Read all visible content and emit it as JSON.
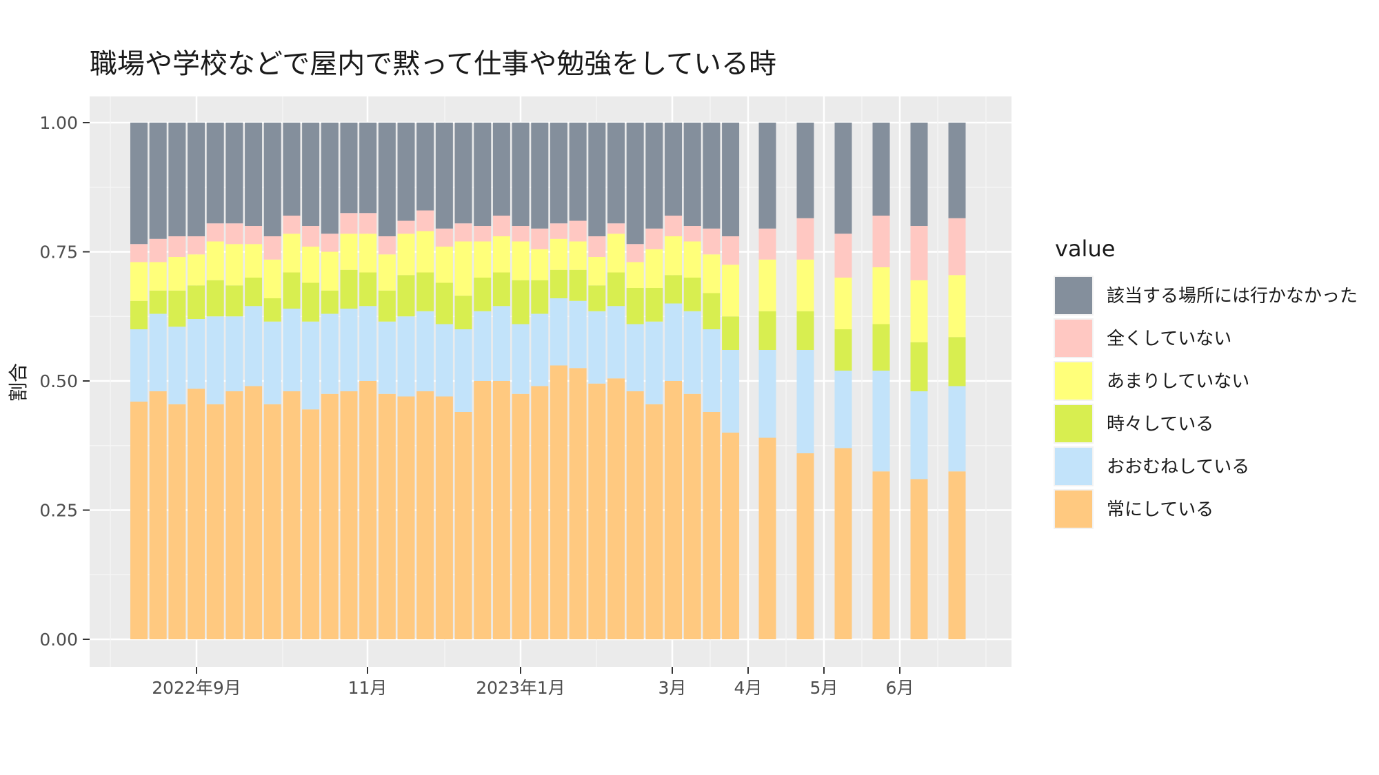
{
  "chart_data": {
    "type": "bar",
    "stacked": true,
    "title": "職場や学校などで屋内で黙って仕事や勉強をしている時",
    "ylabel": "割合",
    "xlabel": "",
    "ylim": [
      0,
      1
    ],
    "y_ticks": [
      "0.00",
      "0.25",
      "0.50",
      "0.75",
      "1.00"
    ],
    "x_tick_labels": [
      "2022年9月",
      "11月",
      "2023年1月",
      "3月",
      "4月",
      "5月",
      "6月"
    ],
    "grid": true,
    "legend": {
      "title": "value",
      "position": "right"
    },
    "series": [
      {
        "name": "常にしている",
        "color": "#FFC980",
        "values": [
          0.46,
          0.48,
          0.455,
          0.485,
          0.455,
          0.48,
          0.49,
          0.455,
          0.48,
          0.445,
          0.475,
          0.48,
          0.5,
          0.475,
          0.47,
          0.48,
          0.47,
          0.44,
          0.5,
          0.5,
          0.475,
          0.49,
          0.53,
          0.525,
          0.495,
          0.505,
          0.48,
          0.455,
          0.5,
          0.475,
          0.44,
          0.4,
          0.39,
          0.36,
          0.37,
          0.325,
          0.31,
          0.325
        ]
      },
      {
        "name": "おおむねしている",
        "color": "#C2E3FA",
        "values": [
          0.14,
          0.15,
          0.15,
          0.135,
          0.17,
          0.145,
          0.155,
          0.16,
          0.16,
          0.17,
          0.155,
          0.16,
          0.145,
          0.14,
          0.155,
          0.155,
          0.14,
          0.16,
          0.135,
          0.145,
          0.135,
          0.14,
          0.13,
          0.13,
          0.14,
          0.14,
          0.13,
          0.16,
          0.15,
          0.16,
          0.16,
          0.16,
          0.17,
          0.2,
          0.15,
          0.195,
          0.17,
          0.165
        ]
      },
      {
        "name": "時々している",
        "color": "#D8EE50",
        "values": [
          0.055,
          0.045,
          0.07,
          0.065,
          0.07,
          0.06,
          0.055,
          0.045,
          0.07,
          0.075,
          0.045,
          0.075,
          0.065,
          0.06,
          0.08,
          0.075,
          0.08,
          0.065,
          0.065,
          0.065,
          0.085,
          0.065,
          0.055,
          0.06,
          0.05,
          0.065,
          0.07,
          0.065,
          0.055,
          0.065,
          0.07,
          0.065,
          0.075,
          0.075,
          0.08,
          0.09,
          0.095,
          0.095
        ]
      },
      {
        "name": "あまりしていない",
        "color": "#FFFF7A",
        "values": [
          0.075,
          0.055,
          0.065,
          0.06,
          0.075,
          0.08,
          0.065,
          0.075,
          0.075,
          0.07,
          0.075,
          0.07,
          0.075,
          0.07,
          0.08,
          0.08,
          0.07,
          0.105,
          0.07,
          0.07,
          0.075,
          0.06,
          0.06,
          0.055,
          0.055,
          0.075,
          0.05,
          0.075,
          0.075,
          0.07,
          0.075,
          0.1,
          0.1,
          0.1,
          0.1,
          0.11,
          0.12,
          0.12
        ]
      },
      {
        "name": "全くしていない",
        "color": "#FFC8C2",
        "values": [
          0.035,
          0.045,
          0.04,
          0.035,
          0.035,
          0.04,
          0.035,
          0.045,
          0.035,
          0.04,
          0.035,
          0.04,
          0.04,
          0.035,
          0.025,
          0.04,
          0.035,
          0.035,
          0.03,
          0.04,
          0.03,
          0.04,
          0.03,
          0.04,
          0.04,
          0.02,
          0.035,
          0.04,
          0.04,
          0.03,
          0.05,
          0.055,
          0.06,
          0.08,
          0.085,
          0.1,
          0.105,
          0.11
        ]
      },
      {
        "name": "該当する場所には行かなかった",
        "color": "#848F9C",
        "values": [
          0.235,
          0.225,
          0.22,
          0.22,
          0.195,
          0.195,
          0.2,
          0.22,
          0.18,
          0.2,
          0.215,
          0.175,
          0.175,
          0.22,
          0.19,
          0.17,
          0.205,
          0.195,
          0.2,
          0.18,
          0.2,
          0.205,
          0.195,
          0.19,
          0.22,
          0.195,
          0.235,
          0.205,
          0.18,
          0.2,
          0.205,
          0.22,
          0.205,
          0.185,
          0.215,
          0.18,
          0.2,
          0.185
        ]
      }
    ]
  }
}
